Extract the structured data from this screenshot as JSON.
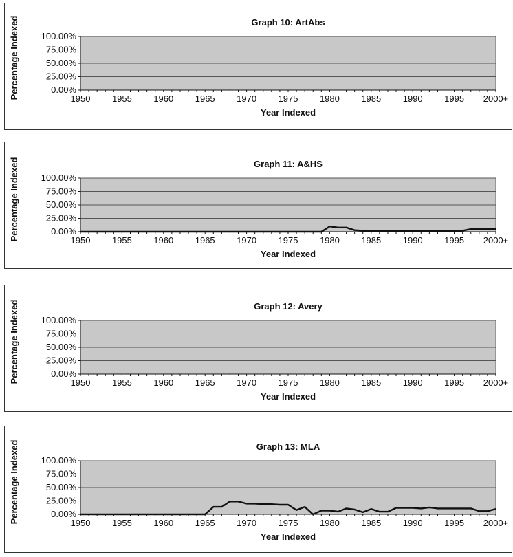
{
  "chart_data": [
    {
      "type": "line",
      "title": "Graph 10: ArtAbs",
      "xlabel": "Year Indexed",
      "ylabel": "Percentage Indexed",
      "x_tick_labels": [
        "1950",
        "1955",
        "1960",
        "1965",
        "1970",
        "1975",
        "1980",
        "1985",
        "1990",
        "1995",
        "2000+"
      ],
      "y_tick_labels": [
        "100.00%",
        "75.00%",
        "50.00%",
        "25.00%",
        "0.00%"
      ],
      "ylim": [
        0,
        100
      ],
      "x": [],
      "values": [],
      "grid": "horizontal",
      "colors": {
        "plot_bg": "#c8c8c8",
        "line": "#111111"
      }
    },
    {
      "type": "line",
      "title": "Graph 11: A&HS",
      "xlabel": "Year Indexed",
      "ylabel": "Percentage Indexed",
      "x_tick_labels": [
        "1950",
        "1955",
        "1960",
        "1965",
        "1970",
        "1975",
        "1980",
        "1985",
        "1990",
        "1995",
        "2000+"
      ],
      "y_tick_labels": [
        "100.00%",
        "75.00%",
        "50.00%",
        "25.00%",
        "0.00%"
      ],
      "ylim": [
        0,
        100
      ],
      "x": [
        1950,
        1951,
        1952,
        1953,
        1954,
        1955,
        1956,
        1957,
        1958,
        1959,
        1960,
        1961,
        1962,
        1963,
        1964,
        1965,
        1966,
        1967,
        1968,
        1969,
        1970,
        1971,
        1972,
        1973,
        1974,
        1975,
        1976,
        1977,
        1978,
        1979,
        1980,
        1981,
        1982,
        1983,
        1984,
        1985,
        1986,
        1987,
        1988,
        1989,
        1990,
        1991,
        1992,
        1993,
        1994,
        1995,
        1996,
        1997,
        1998,
        1999,
        2000
      ],
      "values": [
        0,
        0,
        0,
        0,
        0,
        0,
        0,
        0,
        0,
        0,
        0,
        0,
        0,
        0,
        0,
        0,
        0,
        0,
        0,
        0,
        0,
        0,
        0,
        0,
        0,
        0,
        0,
        0,
        0,
        0,
        10,
        8,
        8,
        3,
        2,
        2,
        2,
        2,
        2,
        2,
        2,
        2,
        2,
        2,
        2,
        2,
        2,
        5,
        5,
        5,
        5
      ],
      "grid": "horizontal",
      "colors": {
        "plot_bg": "#c8c8c8",
        "line": "#111111"
      }
    },
    {
      "type": "line",
      "title": "Graph 12: Avery",
      "xlabel": "Year Indexed",
      "ylabel": "Percentage Indexed",
      "x_tick_labels": [
        "1950",
        "1955",
        "1960",
        "1965",
        "1970",
        "1975",
        "1980",
        "1985",
        "1990",
        "1995",
        "2000+"
      ],
      "y_tick_labels": [
        "100.00%",
        "75.00%",
        "50.00%",
        "25.00%",
        "0.00%"
      ],
      "ylim": [
        0,
        100
      ],
      "x": [],
      "values": [],
      "grid": "horizontal",
      "colors": {
        "plot_bg": "#c8c8c8",
        "line": "#111111"
      }
    },
    {
      "type": "line",
      "title": "Graph 13: MLA",
      "xlabel": "Year Indexed",
      "ylabel": "Percentage Indexed",
      "x_tick_labels": [
        "1950",
        "1955",
        "1960",
        "1965",
        "1970",
        "1975",
        "1980",
        "1985",
        "1990",
        "1995",
        "2000+"
      ],
      "y_tick_labels": [
        "100.00%",
        "75.00%",
        "50.00%",
        "25.00%",
        "0.00%"
      ],
      "ylim": [
        0,
        100
      ],
      "x": [
        1950,
        1951,
        1952,
        1953,
        1954,
        1955,
        1956,
        1957,
        1958,
        1959,
        1960,
        1961,
        1962,
        1963,
        1964,
        1965,
        1966,
        1967,
        1968,
        1969,
        1970,
        1971,
        1972,
        1973,
        1974,
        1975,
        1976,
        1977,
        1978,
        1979,
        1980,
        1981,
        1982,
        1983,
        1984,
        1985,
        1986,
        1987,
        1988,
        1989,
        1990,
        1991,
        1992,
        1993,
        1994,
        1995,
        1996,
        1997,
        1998,
        1999,
        2000
      ],
      "values": [
        0,
        0,
        0,
        0,
        0,
        0,
        0,
        0,
        0,
        0,
        0,
        0,
        0,
        0,
        0,
        0,
        14,
        14,
        24,
        24,
        20,
        20,
        19,
        19,
        18,
        18,
        8,
        14,
        0,
        7,
        7,
        5,
        11,
        9,
        4,
        10,
        5,
        5,
        12,
        12,
        12,
        11,
        13,
        11,
        11,
        11,
        11,
        11,
        6,
        6,
        10
      ],
      "grid": "horizontal",
      "colors": {
        "plot_bg": "#c8c8c8",
        "line": "#111111"
      }
    }
  ]
}
